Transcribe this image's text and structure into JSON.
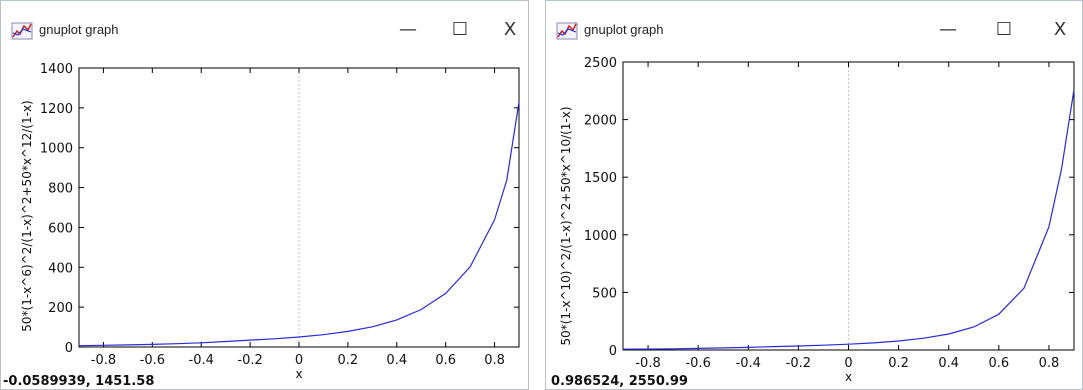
{
  "windows": [
    {
      "title": "gnuplot graph",
      "controls": {
        "minimize": "—",
        "maximize": "☐",
        "close": "X"
      },
      "coord_readout": "-0.0589939, 1451.58"
    },
    {
      "title": "gnuplot graph",
      "controls": {
        "minimize": "—",
        "maximize": "☐",
        "close": "X"
      },
      "coord_readout": "0.986524, 2550.99"
    }
  ],
  "colors": {
    "curve": "#2a2ad8",
    "zero_line": "#c8c8c8",
    "frame": "#000000"
  },
  "chart_data": [
    {
      "type": "line",
      "title": "",
      "xlabel": "x",
      "ylabel": "50*(1-x^6)^2/(1-x)^2+50*x^12/(1-x)",
      "xlim": [
        -0.9,
        0.9
      ],
      "ylim": [
        0,
        1400
      ],
      "x_ticks": [
        "-0.8",
        "-0.6",
        "-0.4",
        "-0.2",
        "0",
        "0.2",
        "0.4",
        "0.6",
        "0.8"
      ],
      "y_ticks": [
        "0",
        "200",
        "400",
        "600",
        "800",
        "1000",
        "1200",
        "1400"
      ],
      "grid": false,
      "zero_axis": true,
      "series": [
        {
          "x": [
            -0.9,
            -0.8,
            -0.7,
            -0.6,
            -0.5,
            -0.4,
            -0.3,
            -0.2,
            -0.1,
            0,
            0.1,
            0.2,
            0.3,
            0.4,
            0.5,
            0.6,
            0.7,
            0.8,
            0.85,
            0.9
          ],
          "y": [
            6.6,
            8.4,
            10.3,
            13.0,
            16.5,
            21.1,
            27.7,
            34.7,
            41.3,
            50,
            61.7,
            78.1,
            101.6,
            136.1,
            188,
            269,
            402,
            639,
            838,
            1230
          ]
        }
      ]
    },
    {
      "type": "line",
      "title": "",
      "xlabel": "x",
      "ylabel": "50*(1-x^10)^2/(1-x)^2+50*x^10/(1-x)",
      "xlim": [
        -0.9,
        0.9
      ],
      "ylim": [
        0,
        2500
      ],
      "x_ticks": [
        "-0.8",
        "-0.6",
        "-0.4",
        "-0.2",
        "0",
        "0.2",
        "0.4",
        "0.6",
        "0.8"
      ],
      "y_ticks": [
        "0",
        "500",
        "1000",
        "1500",
        "2000",
        "2500"
      ],
      "grid": false,
      "zero_axis": true,
      "series": [
        {
          "x": [
            -0.9,
            -0.8,
            -0.7,
            -0.6,
            -0.5,
            -0.4,
            -0.3,
            -0.2,
            -0.1,
            0,
            0.1,
            0.2,
            0.3,
            0.4,
            0.5,
            0.6,
            0.7,
            0.8,
            0.85,
            0.9
          ],
          "y": [
            7.0,
            7.9,
            10.7,
            13.9,
            17.8,
            22.8,
            29.6,
            34.7,
            41.3,
            50,
            61.7,
            78.1,
            102,
            139,
            200,
            311,
            536,
            1069,
            1570,
            2260
          ]
        }
      ]
    }
  ]
}
